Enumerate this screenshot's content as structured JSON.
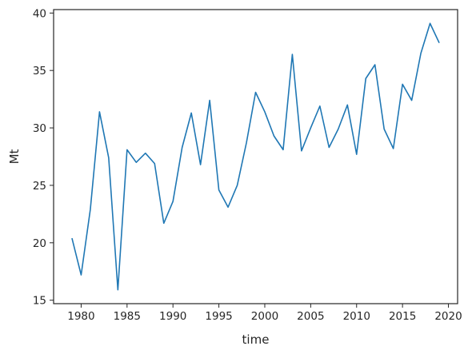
{
  "chart_data": {
    "type": "line",
    "title": "",
    "xlabel": "time",
    "ylabel": "Mt",
    "xlim": [
      1977,
      2021
    ],
    "ylim": [
      14.7,
      40.3
    ],
    "xticks": [
      1980,
      1985,
      1990,
      1995,
      2000,
      2005,
      2010,
      2015,
      2020
    ],
    "yticks": [
      15,
      20,
      25,
      30,
      35,
      40
    ],
    "grid": false,
    "line_color": "#1f77b4",
    "x": [
      1979,
      1980,
      1981,
      1982,
      1983,
      1984,
      1985,
      1986,
      1987,
      1988,
      1989,
      1990,
      1991,
      1992,
      1993,
      1994,
      1995,
      1996,
      1997,
      1998,
      1999,
      2000,
      2001,
      2002,
      2003,
      2004,
      2005,
      2006,
      2007,
      2008,
      2009,
      2010,
      2011,
      2012,
      2013,
      2014,
      2015,
      2016,
      2017,
      2018,
      2019
    ],
    "y": [
      20.4,
      17.2,
      22.9,
      31.4,
      27.4,
      15.9,
      28.1,
      27.0,
      27.8,
      26.9,
      21.7,
      23.6,
      28.3,
      31.3,
      26.8,
      32.4,
      24.6,
      23.1,
      25.0,
      28.7,
      33.1,
      31.4,
      29.3,
      28.1,
      36.4,
      28.0,
      30.0,
      31.9,
      28.3,
      29.9,
      32.0,
      27.7,
      34.3,
      35.5,
      29.9,
      28.2,
      33.8,
      32.4,
      36.5,
      39.1,
      37.4
    ]
  }
}
